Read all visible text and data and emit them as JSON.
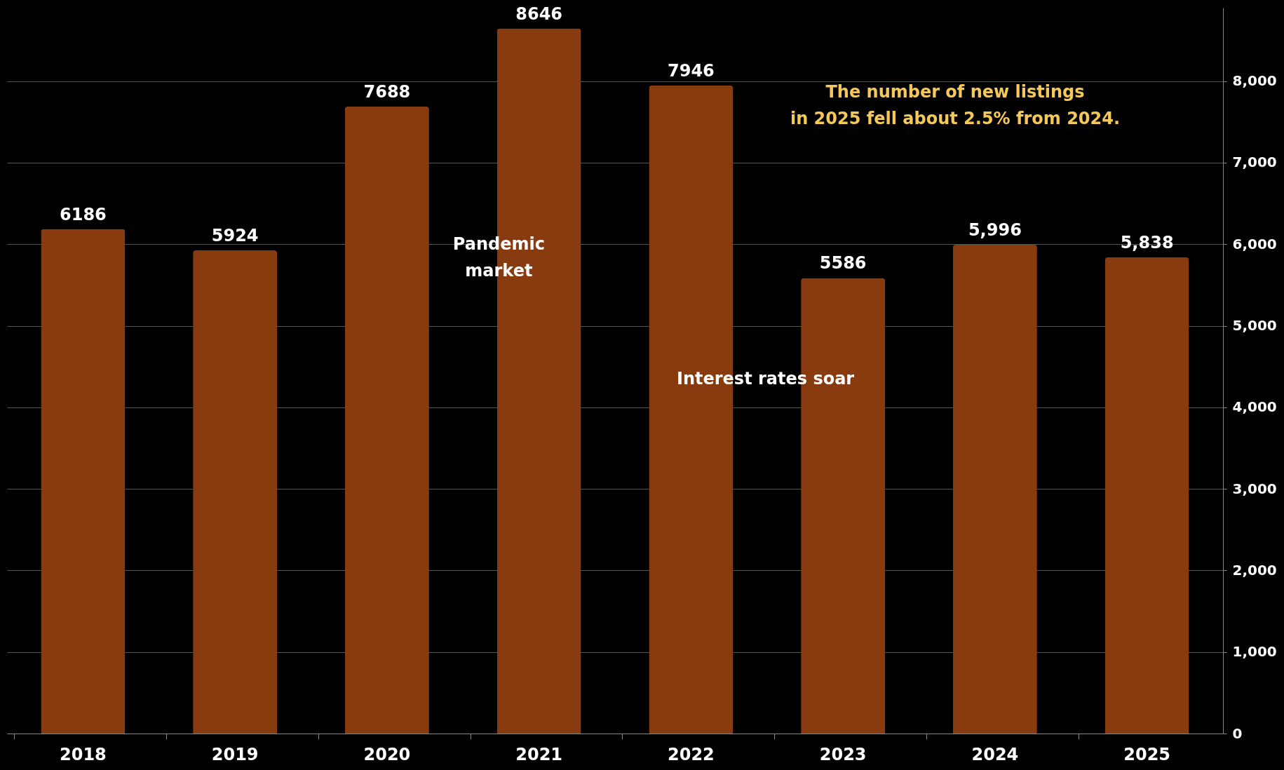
{
  "chart_data": {
    "type": "bar",
    "categories": [
      "2018",
      "2019",
      "2020",
      "2021",
      "2022",
      "2023",
      "2024",
      "2025"
    ],
    "values": [
      6186,
      5924,
      7688,
      8646,
      7946,
      5586,
      5996,
      5838
    ],
    "value_labels": [
      "6186",
      "5924",
      "7688",
      "8646",
      "7946",
      "5586",
      "5,996",
      "5,838"
    ],
    "color": "#873b0e",
    "ylim": [
      0,
      8900
    ],
    "yticks": [
      {
        "value": 0,
        "label": "0"
      },
      {
        "value": 1000,
        "label": "1,000"
      },
      {
        "value": 2000,
        "label": "2,000"
      },
      {
        "value": 3000,
        "label": "3,000"
      },
      {
        "value": 4000,
        "label": "4,000"
      },
      {
        "value": 5000,
        "label": "5,000"
      },
      {
        "value": 6000,
        "label": "6,000"
      },
      {
        "value": 7000,
        "label": "7,000"
      },
      {
        "value": 8000,
        "label": "8,000"
      }
    ],
    "grid": "y",
    "annotations": [
      "Pandemic market",
      "Interest rates soar",
      "The number of new listings in 2025 fell about 2.5% from 2024."
    ]
  }
}
